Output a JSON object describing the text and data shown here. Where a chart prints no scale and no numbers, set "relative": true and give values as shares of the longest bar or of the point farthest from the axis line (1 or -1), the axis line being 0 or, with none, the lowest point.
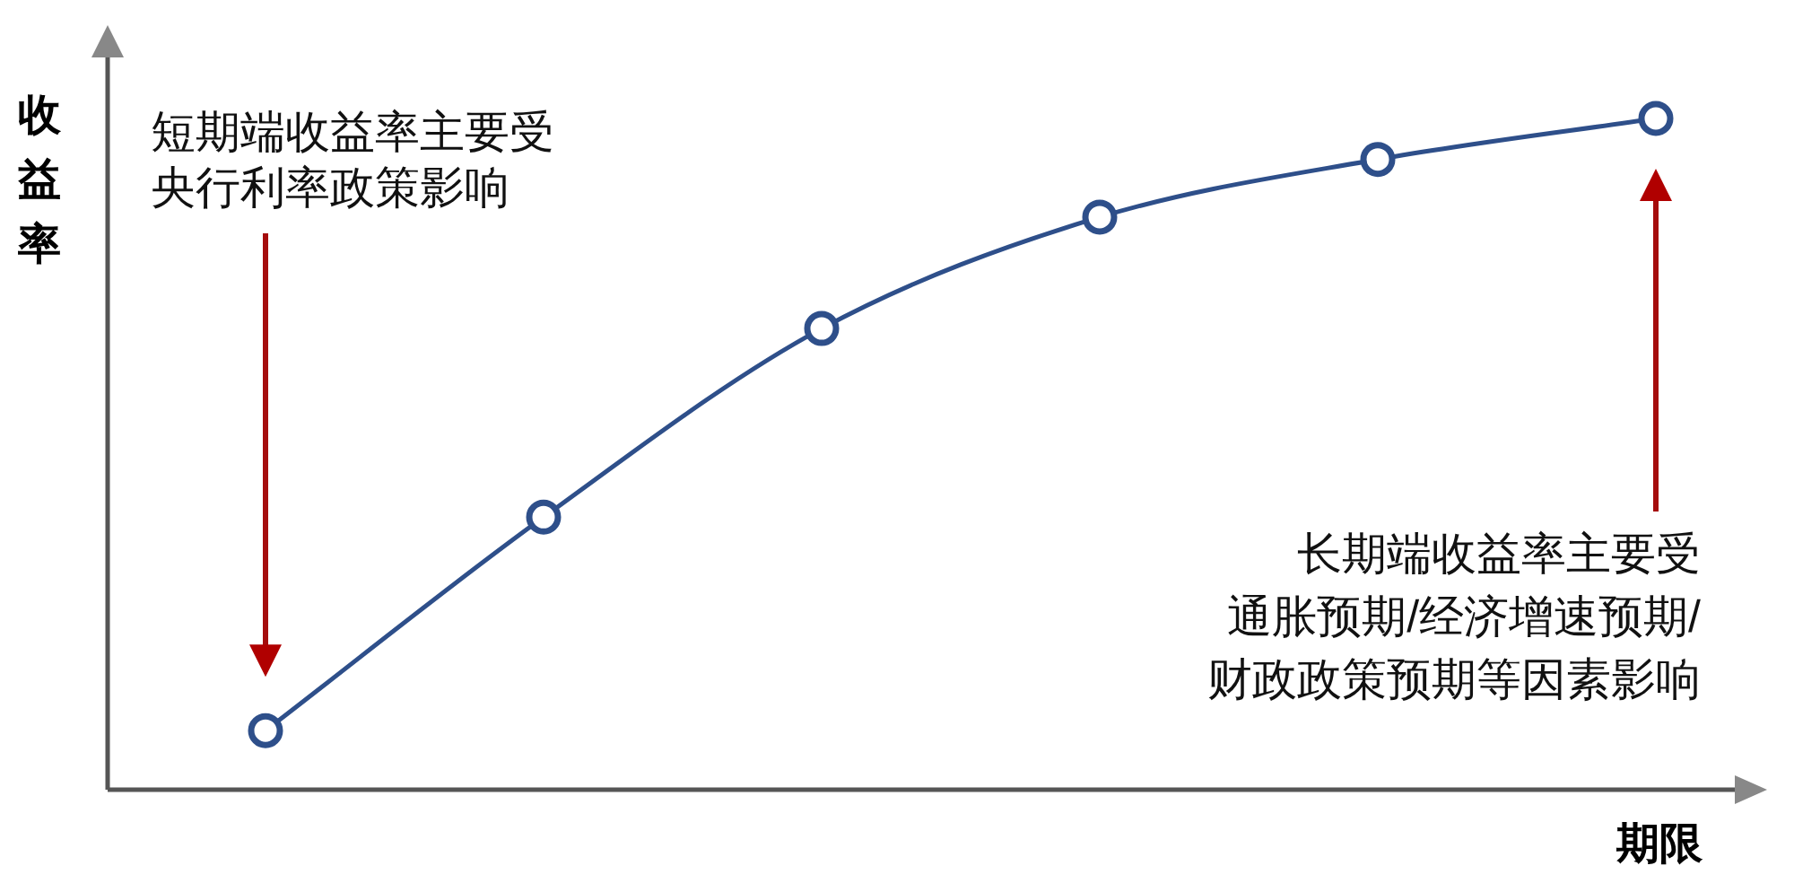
{
  "chart_data": {
    "type": "line",
    "relative": true,
    "xlabel": "期限",
    "ylabel": "收益率",
    "categories": [
      null,
      null,
      null,
      null,
      null,
      null
    ],
    "series": [
      {
        "color": "#2e4f8a",
        "values": [
          0.088,
          0.406,
          0.687,
          0.853,
          0.939,
          1
        ]
      }
    ],
    "marker": "circle",
    "grid": false,
    "annotations": [
      "短期端收益率主要受",
      "央行利率政策影响",
      "长期端收益率主要受",
      "通胀预期/经济增速预期/",
      "财政政策预期等因素影响"
    ]
  }
}
